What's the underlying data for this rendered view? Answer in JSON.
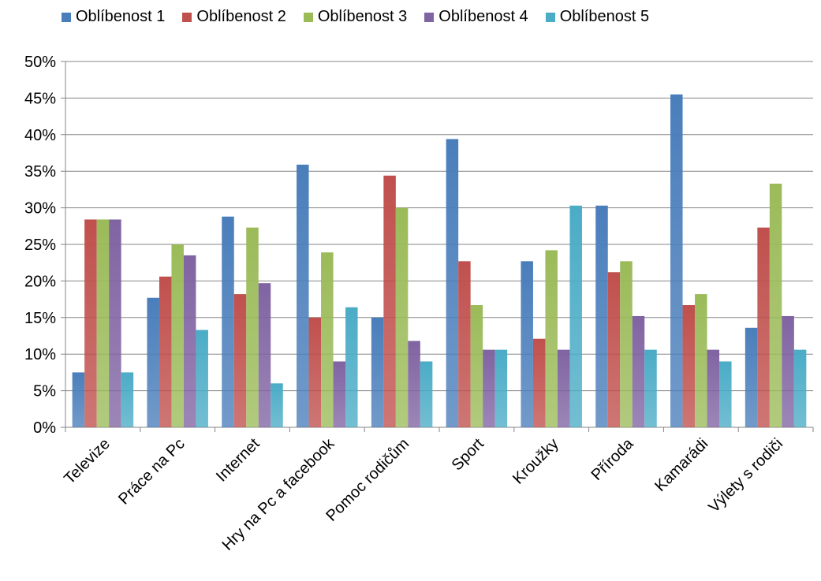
{
  "chart_data": {
    "type": "bar",
    "categories": [
      "Televize",
      "Práce na Pc",
      "Internet",
      "Hry na Pc a facebook",
      "Pomoc rodičům",
      "Sport",
      "Kroužky",
      "Příroda",
      "Kamarádi",
      "Výlety s rodiči"
    ],
    "series": [
      {
        "name": "Oblíbenost 1",
        "color": "#4a7ebb",
        "values": [
          7.5,
          17.7,
          28.8,
          35.9,
          15.0,
          39.4,
          22.7,
          30.3,
          45.5,
          13.6
        ]
      },
      {
        "name": "Oblíbenost 2",
        "color": "#c0504d",
        "values": [
          28.4,
          20.6,
          18.2,
          15.0,
          34.4,
          22.7,
          12.1,
          21.2,
          16.7,
          27.3
        ]
      },
      {
        "name": "Oblíbenost 3",
        "color": "#9bbb59",
        "values": [
          28.4,
          25.0,
          27.3,
          23.9,
          30.0,
          16.7,
          24.2,
          22.7,
          18.2,
          33.3
        ]
      },
      {
        "name": "Oblíbenost 4",
        "color": "#8064a2",
        "values": [
          28.4,
          23.5,
          19.7,
          9.0,
          11.8,
          10.6,
          10.6,
          15.2,
          10.6,
          15.2
        ]
      },
      {
        "name": "Oblíbenost 5",
        "color": "#4bacc6",
        "values": [
          7.5,
          13.3,
          6.0,
          16.4,
          9.0,
          10.6,
          30.3,
          10.6,
          9.0,
          10.6
        ]
      }
    ],
    "y_ticks": [
      "0%",
      "5%",
      "10%",
      "15%",
      "20%",
      "25%",
      "30%",
      "35%",
      "40%",
      "45%",
      "50%"
    ],
    "ylim": [
      0,
      50
    ],
    "grid": true,
    "legend_position": "top"
  }
}
